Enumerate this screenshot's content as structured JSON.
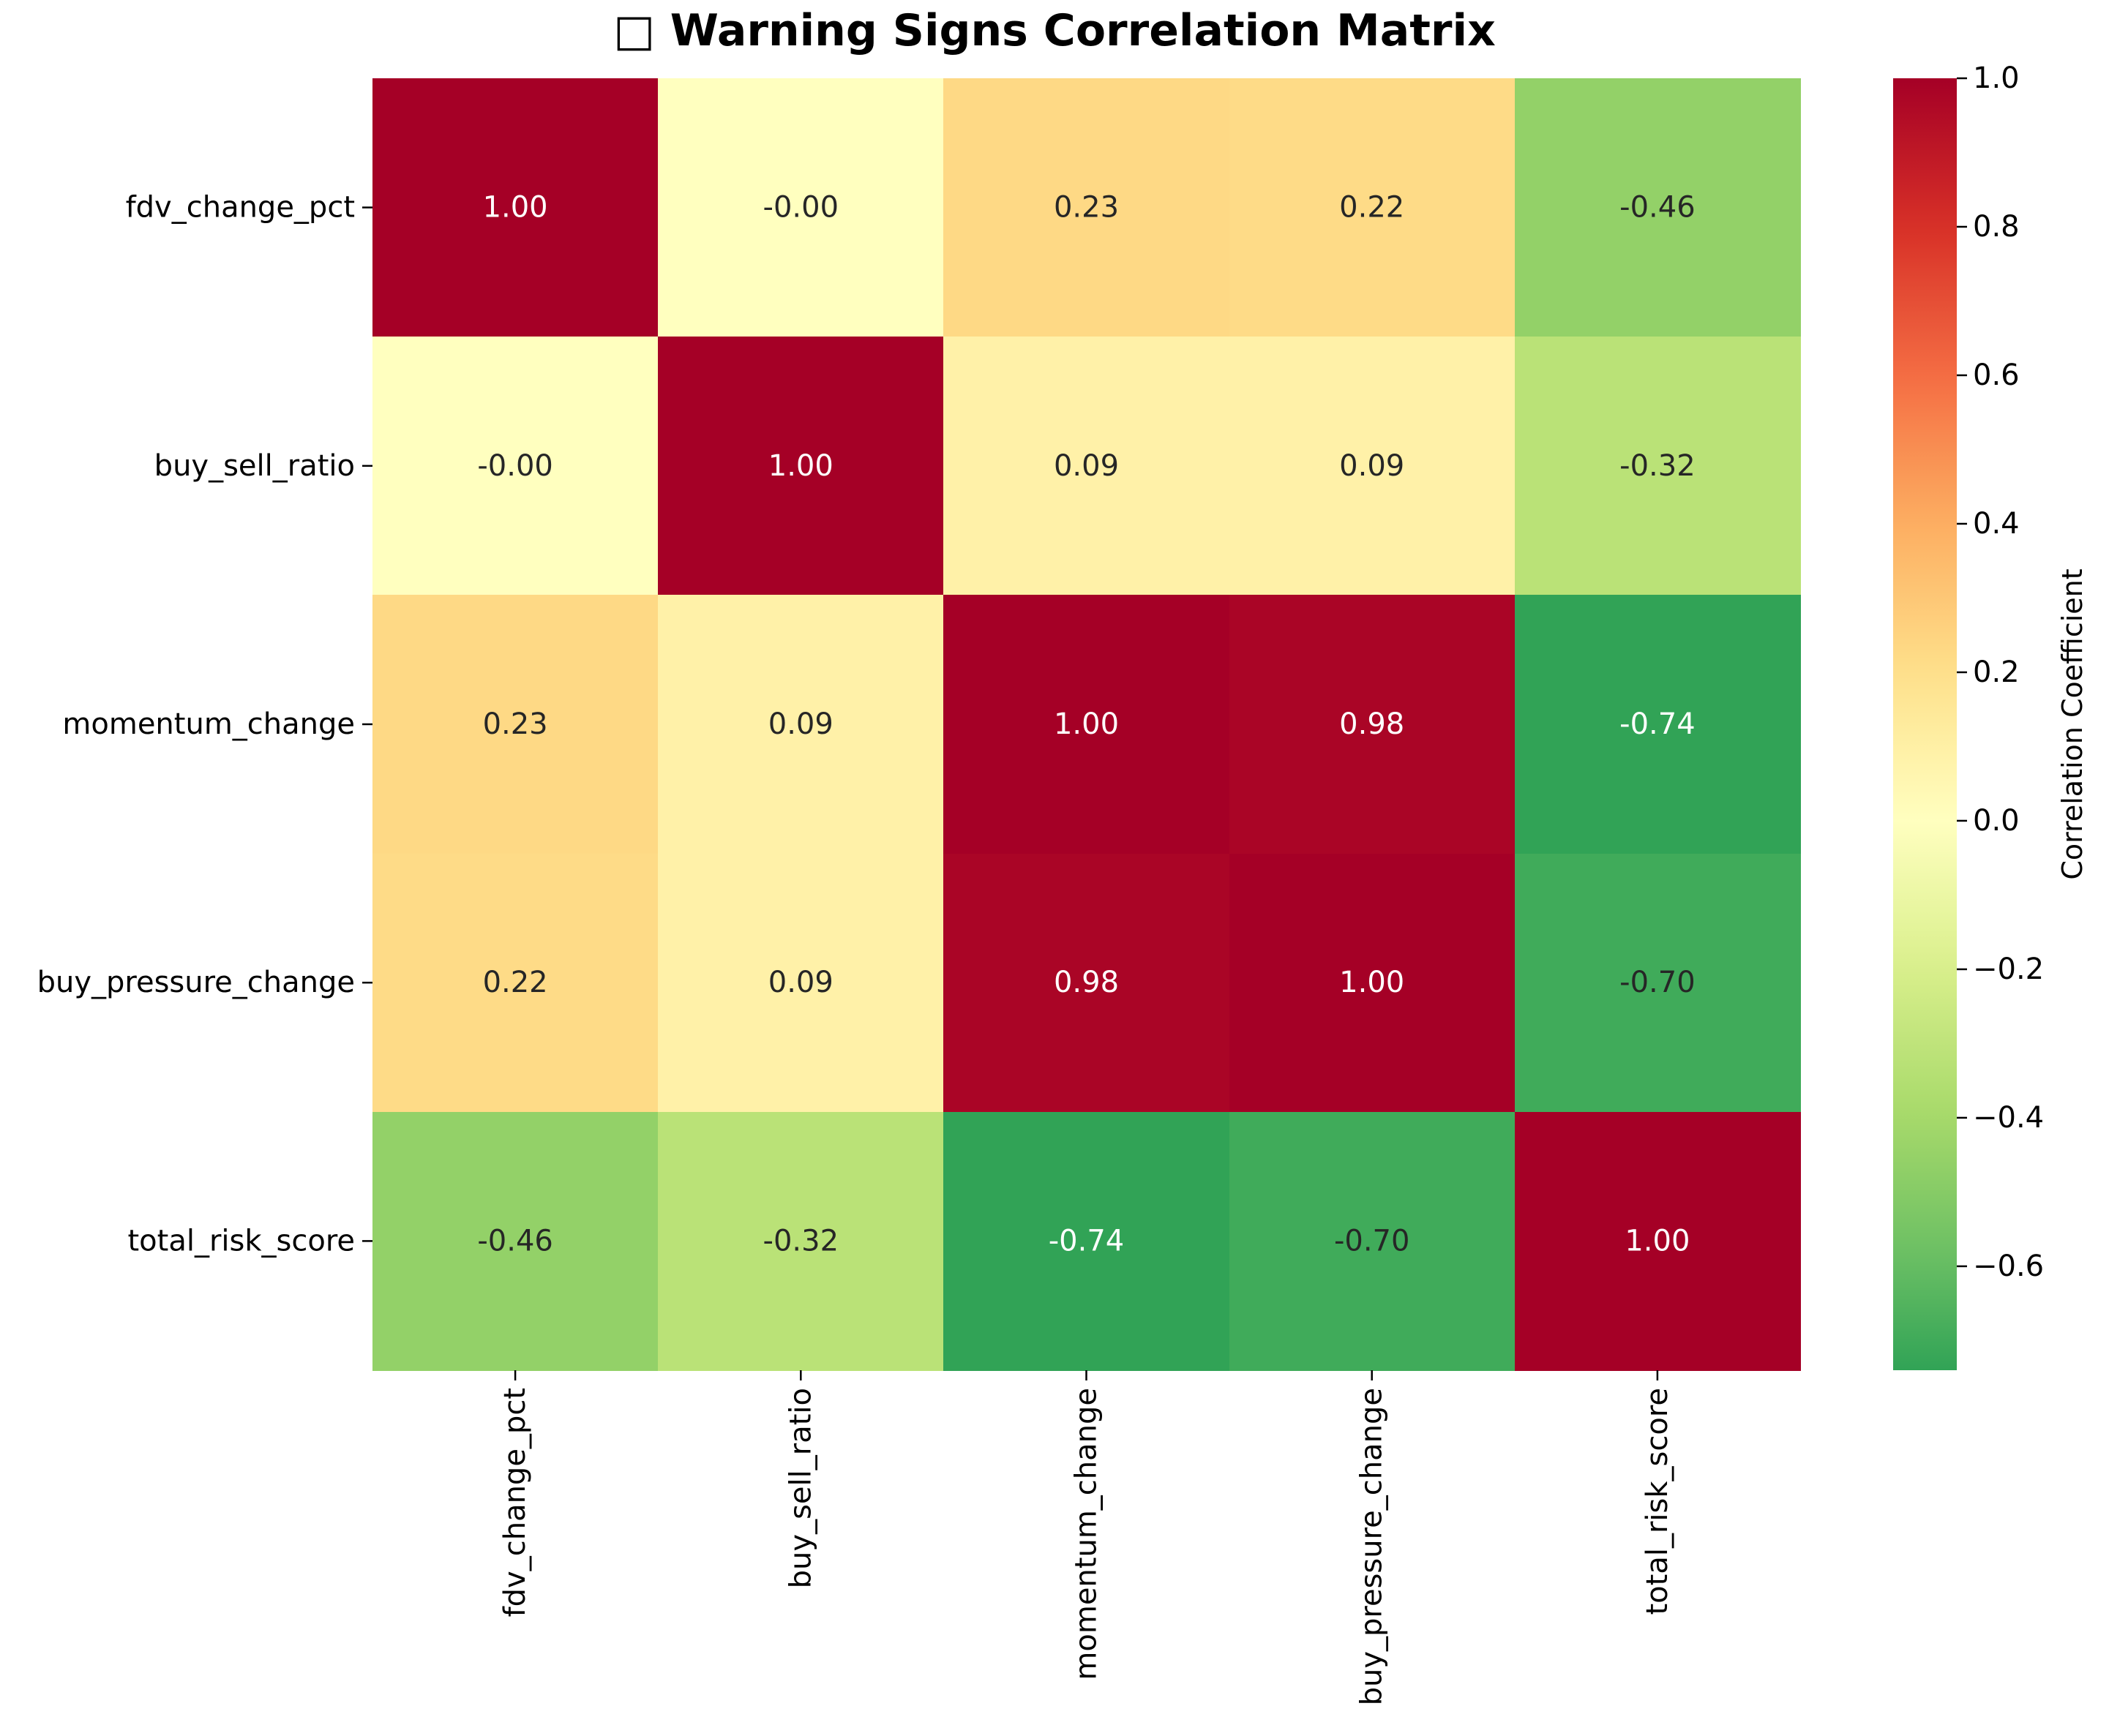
{
  "chart_data": {
    "type": "heatmap",
    "title": "□ Warning Signs Correlation Matrix",
    "xlabel": "",
    "ylabel": "",
    "row_labels": [
      "fdv_change_pct",
      "buy_sell_ratio",
      "momentum_change",
      "buy_pressure_change",
      "total_risk_score"
    ],
    "col_labels": [
      "fdv_change_pct",
      "buy_sell_ratio",
      "momentum_change",
      "buy_pressure_change",
      "total_risk_score"
    ],
    "values": [
      [
        1.0,
        -0.0,
        0.23,
        0.22,
        -0.46
      ],
      [
        -0.0,
        1.0,
        0.09,
        0.09,
        -0.32
      ],
      [
        0.23,
        0.09,
        1.0,
        0.98,
        -0.74
      ],
      [
        0.22,
        0.09,
        0.98,
        1.0,
        -0.7
      ],
      [
        -0.46,
        -0.32,
        -0.74,
        -0.7,
        1.0
      ]
    ],
    "cell_labels": [
      [
        "1.00",
        "-0.00",
        "0.23",
        "0.22",
        "-0.46"
      ],
      [
        "-0.00",
        "1.00",
        "0.09",
        "0.09",
        "-0.32"
      ],
      [
        "0.23",
        "0.09",
        "1.00",
        "0.98",
        "-0.74"
      ],
      [
        "0.22",
        "0.09",
        "0.98",
        "1.00",
        "-0.70"
      ],
      [
        "-0.46",
        "-0.32",
        "-0.74",
        "-0.70",
        "1.00"
      ]
    ],
    "colormap": "RdYlGn_r",
    "colorbar": {
      "label": "Correlation Coefficient",
      "vmin": -0.74,
      "vmax": 1.0,
      "ticks": [
        1.0,
        0.8,
        0.6,
        0.4,
        0.2,
        0.0,
        -0.2,
        -0.4,
        -0.6
      ],
      "tick_labels": [
        "1.0",
        "0.8",
        "0.6",
        "0.4",
        "0.2",
        "0.0",
        "−0.2",
        "−0.4",
        "−0.6"
      ]
    },
    "grid": false
  }
}
